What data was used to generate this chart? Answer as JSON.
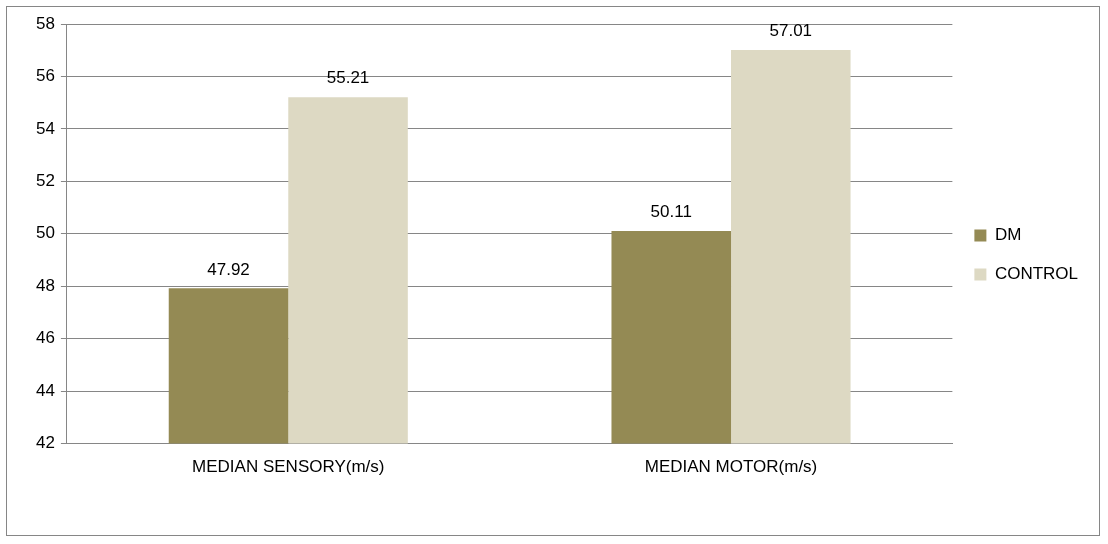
{
  "chart_data": {
    "type": "bar",
    "categories": [
      "MEDIAN SENSORY(m/s)",
      "MEDIAN MOTOR(m/s)"
    ],
    "series": [
      {
        "name": "DM",
        "color": "#948a54",
        "values": [
          47.92,
          50.11
        ]
      },
      {
        "name": "CONTROL",
        "color": "#ddd9c3",
        "values": [
          55.21,
          57.01
        ]
      }
    ],
    "ylim": [
      42,
      58
    ],
    "yticks": [
      42,
      44,
      46,
      48,
      50,
      52,
      54,
      56,
      58
    ],
    "grid": "y",
    "legend": "right",
    "data_labels": true
  }
}
